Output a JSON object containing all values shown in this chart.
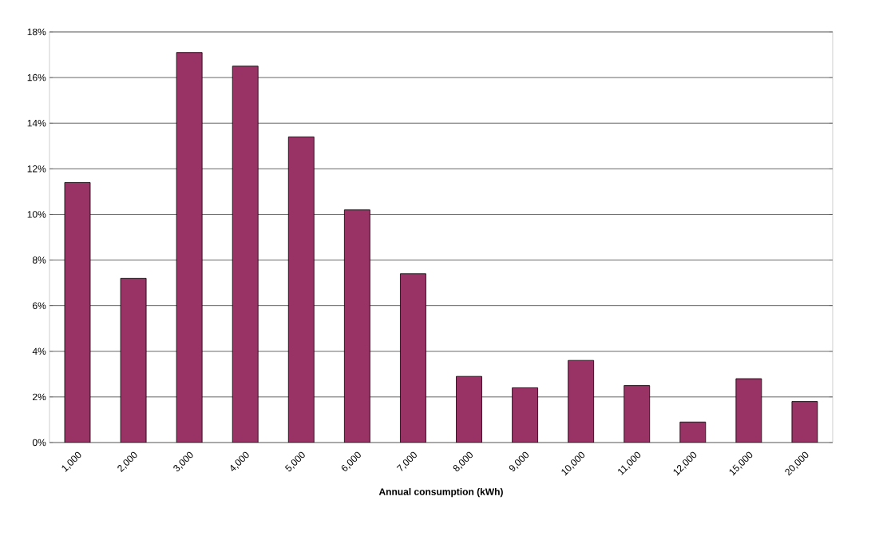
{
  "chart_data": {
    "type": "bar",
    "xlabel": "Annual consumption (kWh)",
    "categories": [
      "1,000",
      "2,000",
      "3,000",
      "4,000",
      "5,000",
      "6,000",
      "7,000",
      "8,000",
      "9,000",
      "10,000",
      "11,000",
      "12,000",
      "15,000",
      "20,000"
    ],
    "values": [
      11.4,
      7.2,
      17.1,
      16.5,
      13.4,
      10.2,
      7.4,
      2.9,
      2.4,
      3.6,
      2.5,
      0.9,
      2.8,
      1.8
    ],
    "color": "#993366",
    "ylim": [
      0,
      18
    ],
    "yticks": [
      {
        "value": 0,
        "label": "0%"
      },
      {
        "value": 2,
        "label": "2%"
      },
      {
        "value": 4,
        "label": "4%"
      },
      {
        "value": 6,
        "label": "6%"
      },
      {
        "value": 8,
        "label": "8%"
      },
      {
        "value": 10,
        "label": "10%"
      },
      {
        "value": 12,
        "label": "12%"
      },
      {
        "value": 14,
        "label": "14%"
      },
      {
        "value": 16,
        "label": "16%"
      },
      {
        "value": 18,
        "label": "18%"
      }
    ],
    "grid": "y"
  }
}
